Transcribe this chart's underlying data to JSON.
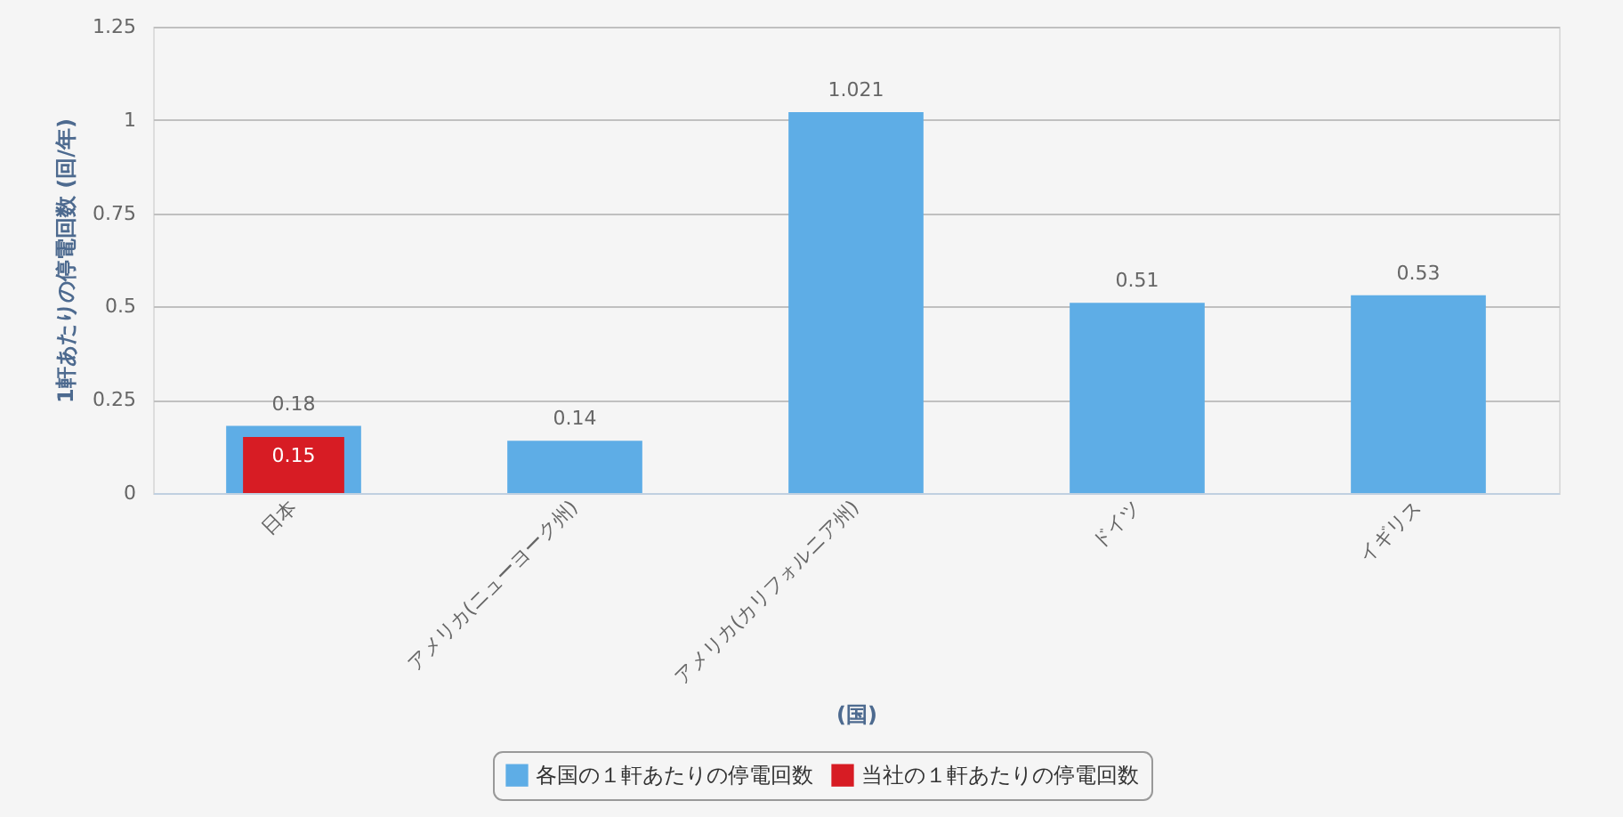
{
  "chart_data": {
    "type": "bar",
    "xlabel": "(国)",
    "ylabel": "1軒あたりの停電回数 (回/年)",
    "categories": [
      "日本",
      "アメリカ(ニューヨーク州)",
      "アメリカ(カリフォルニア州)",
      "ドイツ",
      "イギリス"
    ],
    "series": [
      {
        "name": "各国の１軒あたりの停電回数",
        "color": "#5eade6",
        "values": [
          0.18,
          0.14,
          1.021,
          0.51,
          0.53
        ]
      },
      {
        "name": "当社の１軒あたりの停電回数",
        "color": "#d71c24",
        "values": [
          0.15,
          null,
          null,
          null,
          null
        ]
      }
    ],
    "ylim": [
      0,
      1.25
    ],
    "yticks": [
      0,
      0.25,
      0.5,
      0.75,
      1,
      1.25
    ],
    "grid": "y",
    "legend": "bottom",
    "data_labels": true
  }
}
